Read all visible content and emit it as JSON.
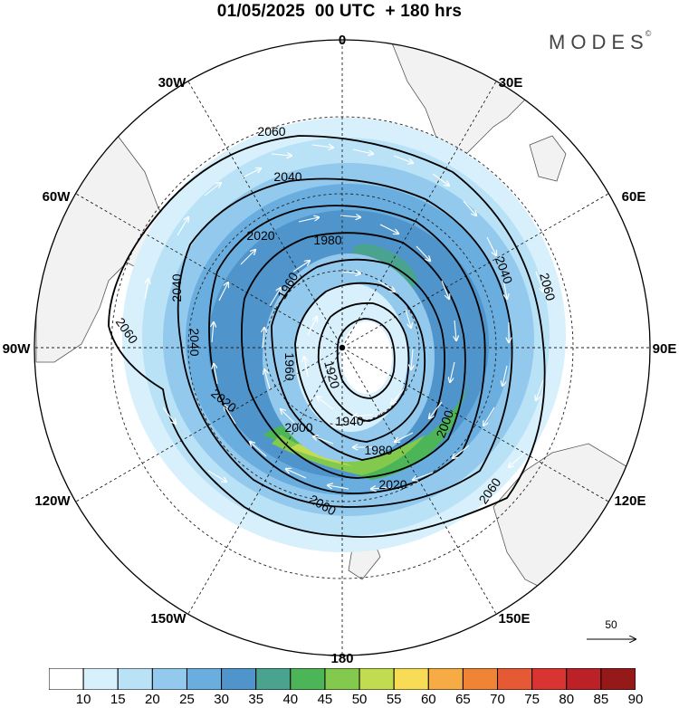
{
  "title": "01/05/2025  00 UTC  + 180 hrs",
  "logo": {
    "text": "MODES",
    "mark": "©"
  },
  "map": {
    "projection": "south-polar-stereographic",
    "longitude_labels": [
      {
        "name": "0",
        "key": "lon-0"
      },
      {
        "name": "30E",
        "key": "lon-30e"
      },
      {
        "name": "60E",
        "key": "lon-60e"
      },
      {
        "name": "90E",
        "key": "lon-90e"
      },
      {
        "name": "120E",
        "key": "lon-120e"
      },
      {
        "name": "150E",
        "key": "lon-150e"
      },
      {
        "name": "180",
        "key": "lon-180"
      },
      {
        "name": "150W",
        "key": "lon-150w"
      },
      {
        "name": "120W",
        "key": "lon-120w"
      },
      {
        "name": "90W",
        "key": "lon-90w"
      },
      {
        "name": "60W",
        "key": "lon-60w"
      },
      {
        "name": "30W",
        "key": "lon-30w"
      }
    ],
    "contour_labels": [
      "2060",
      "2040",
      "2020",
      "1980",
      "1960",
      "2040",
      "2060",
      "2040",
      "2060",
      "1920",
      "1940",
      "1980",
      "2000",
      "2000",
      "2020",
      "2060",
      "2060",
      "2040",
      "2020",
      "1960"
    ],
    "land_color": "#f2f2f2",
    "coast_color": "#555555"
  },
  "reference_vector": {
    "label": "50"
  },
  "colorbar": {
    "colors": [
      "#ffffff",
      "#d7f0fb",
      "#b9e2f6",
      "#92c9ec",
      "#6aaedf",
      "#4f95cb",
      "#4aa38f",
      "#4cb558",
      "#82c94e",
      "#c2dc52",
      "#f9dc55",
      "#f6ab45",
      "#f08435",
      "#e55a35",
      "#d93332",
      "#bb2127",
      "#961919"
    ],
    "labels": [
      "10",
      "15",
      "20",
      "25",
      "30",
      "35",
      "40",
      "45",
      "50",
      "55",
      "60",
      "65",
      "70",
      "75",
      "80",
      "85",
      "90"
    ]
  }
}
